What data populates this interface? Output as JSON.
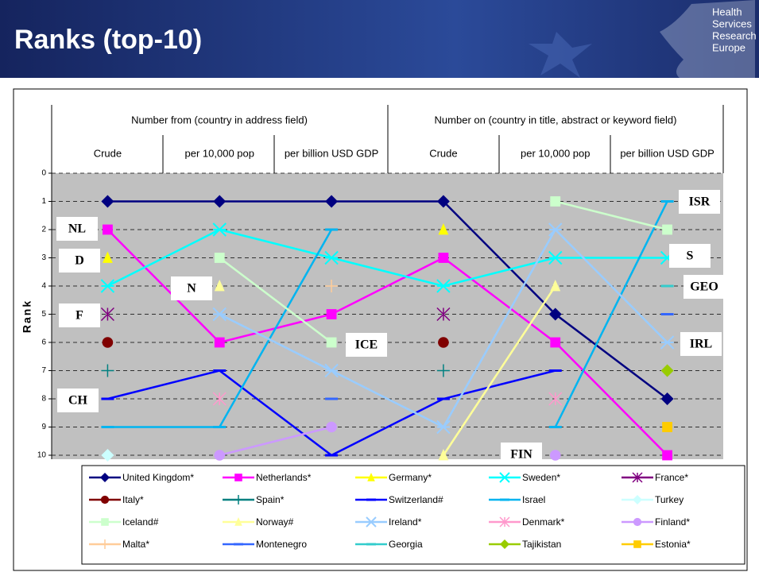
{
  "header": {
    "logo": [
      "Health",
      "Services",
      "Research",
      "Europe"
    ]
  },
  "chart_data": {
    "type": "line",
    "title": "Ranks (top-10)",
    "groups": [
      "Number from (country in address field)",
      "Number on (country in title, abstract or keyword field)"
    ],
    "categories": [
      "Crude",
      "per 10,000 pop",
      "per billion USD GDP",
      "Crude",
      "per 10,000 pop",
      "per billion USD GDP"
    ],
    "y_label": "Rank",
    "ylim": [
      0,
      10
    ],
    "yticks": [
      0,
      1,
      2,
      3,
      4,
      5,
      6,
      7,
      8,
      9,
      10
    ],
    "y_reversed": true,
    "grid": true,
    "annotations": [
      "NL",
      "D",
      "F",
      "CH",
      "N",
      "ICE",
      "FIN",
      "ISR",
      "S",
      "GEO",
      "IRL"
    ],
    "series": [
      {
        "name": "United Kingdom*",
        "color": "#000080",
        "marker": "diamond",
        "values": [
          1,
          1,
          1,
          1,
          5,
          8
        ]
      },
      {
        "name": "Netherlands*",
        "color": "#ff00ff",
        "marker": "square",
        "values": [
          2,
          6,
          5,
          3,
          6,
          10
        ]
      },
      {
        "name": "Germany*",
        "color": "#ffff00",
        "marker": "triangle",
        "values": [
          3,
          null,
          null,
          2,
          null,
          null
        ]
      },
      {
        "name": "Sweden*",
        "color": "#00ffff",
        "marker": "x",
        "values": [
          4,
          2,
          3,
          4,
          3,
          3
        ]
      },
      {
        "name": "France*",
        "color": "#800080",
        "marker": "asterisk",
        "values": [
          5,
          null,
          null,
          5,
          null,
          null
        ]
      },
      {
        "name": "Italy*",
        "color": "#800000",
        "marker": "circle",
        "values": [
          6,
          null,
          null,
          6,
          null,
          null
        ]
      },
      {
        "name": "Spain*",
        "color": "#008080",
        "marker": "plus",
        "values": [
          7,
          null,
          null,
          7,
          null,
          null
        ]
      },
      {
        "name": "Switzerland#",
        "color": "#0000ff",
        "marker": "dash",
        "values": [
          8,
          7,
          10,
          8,
          7,
          null
        ]
      },
      {
        "name": "Israel",
        "color": "#00b4f0",
        "marker": "dash",
        "values": [
          9,
          9,
          2,
          null,
          9,
          1
        ]
      },
      {
        "name": "Turkey",
        "color": "#ccffff",
        "marker": "diamond",
        "values": [
          10,
          null,
          null,
          null,
          null,
          null
        ]
      },
      {
        "name": "Iceland#",
        "color": "#ccffcc",
        "marker": "square",
        "values": [
          null,
          3,
          6,
          null,
          1,
          2
        ]
      },
      {
        "name": "Norway#",
        "color": "#ffff99",
        "marker": "triangle",
        "values": [
          null,
          4,
          null,
          10,
          4,
          null
        ]
      },
      {
        "name": "Ireland*",
        "color": "#99ccff",
        "marker": "x",
        "values": [
          null,
          5,
          7,
          9,
          2,
          6
        ]
      },
      {
        "name": "Denmark*",
        "color": "#ff99cc",
        "marker": "asterisk",
        "values": [
          null,
          8,
          null,
          null,
          8,
          null
        ]
      },
      {
        "name": "Finland*",
        "color": "#cc99ff",
        "marker": "circle",
        "values": [
          null,
          10,
          9,
          null,
          10,
          null
        ]
      },
      {
        "name": "Malta*",
        "color": "#ffcc99",
        "marker": "plus",
        "values": [
          null,
          null,
          4,
          null,
          null,
          null
        ]
      },
      {
        "name": "Montenegro",
        "color": "#3366ff",
        "marker": "dash",
        "values": [
          null,
          null,
          8,
          null,
          null,
          5
        ]
      },
      {
        "name": "Georgia",
        "color": "#33cccc",
        "marker": "dash",
        "values": [
          null,
          null,
          null,
          null,
          null,
          4
        ]
      },
      {
        "name": "Tajikistan",
        "color": "#99cc00",
        "marker": "diamond",
        "values": [
          null,
          null,
          null,
          null,
          null,
          7
        ]
      },
      {
        "name": "Estonia*",
        "color": "#ffcc00",
        "marker": "square",
        "values": [
          null,
          null,
          null,
          null,
          null,
          9
        ]
      }
    ]
  }
}
